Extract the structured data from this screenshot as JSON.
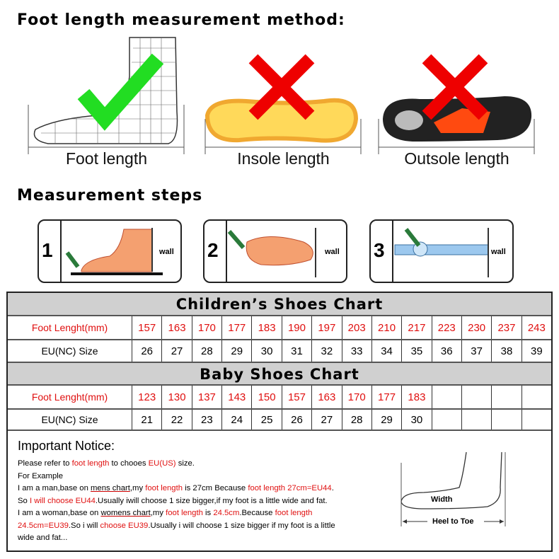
{
  "title": "Foot length measurement method:",
  "methods": [
    {
      "caption": "Foot length",
      "mark": "check",
      "color": "#22dd22"
    },
    {
      "caption": "Insole length",
      "mark": "cross",
      "color": "#ee0000"
    },
    {
      "caption": "Outsole length",
      "mark": "cross",
      "color": "#ee0000"
    }
  ],
  "steps_title": "Measurement steps",
  "steps": [
    {
      "num": "1",
      "wall": "wall"
    },
    {
      "num": "2",
      "wall": "wall"
    },
    {
      "num": "3",
      "wall": "wall"
    }
  ],
  "children": {
    "title": "Children’s Shoes Chart",
    "len_label": "Foot Lenght(mm)",
    "size_label": "EU(NC) Size",
    "lengths": [
      "157",
      "163",
      "170",
      "177",
      "183",
      "190",
      "197",
      "203",
      "210",
      "217",
      "223",
      "230",
      "237",
      "243"
    ],
    "sizes": [
      "26",
      "27",
      "28",
      "29",
      "30",
      "31",
      "32",
      "33",
      "34",
      "35",
      "36",
      "37",
      "38",
      "39"
    ]
  },
  "baby": {
    "title": "Baby Shoes Chart",
    "len_label": "Foot Lenght(mm)",
    "size_label": "EU(NC) Size",
    "lengths": [
      "123",
      "130",
      "137",
      "143",
      "150",
      "157",
      "163",
      "170",
      "177",
      "183",
      "",
      "",
      "",
      ""
    ],
    "sizes": [
      "21",
      "22",
      "23",
      "24",
      "25",
      "26",
      "27",
      "28",
      "29",
      "30",
      "",
      "",
      "",
      ""
    ]
  },
  "notice": {
    "title": "Important Notice:",
    "l1": [
      "Please refer to ",
      "foot length",
      " to chooes ",
      "EU(US)",
      " size."
    ],
    "l2": "For Example",
    "l3": [
      "I am a man,base on ",
      "mens chart",
      ",my ",
      "foot length",
      " is 27cm Because ",
      "foot length 27cm=EU44",
      "."
    ],
    "l4": [
      "So ",
      "I will choose EU44",
      ".Usually iwill choose 1 size bigger,if my foot is a little wide and fat."
    ],
    "l5": [
      "I am a woman,base on ",
      "womens chart",
      ",my ",
      "foot length",
      " is ",
      "24.5cm",
      ".Because ",
      "foot length"
    ],
    "l6": [
      "24.5cm=EU39",
      ".So i will ",
      "choose EU39",
      ".Usually i will choose 1 size bigger if my foot is a little"
    ],
    "l7": "wide and fat..."
  },
  "diagram": {
    "width": "Width",
    "heel_to_toe": "Heel to Toe"
  }
}
